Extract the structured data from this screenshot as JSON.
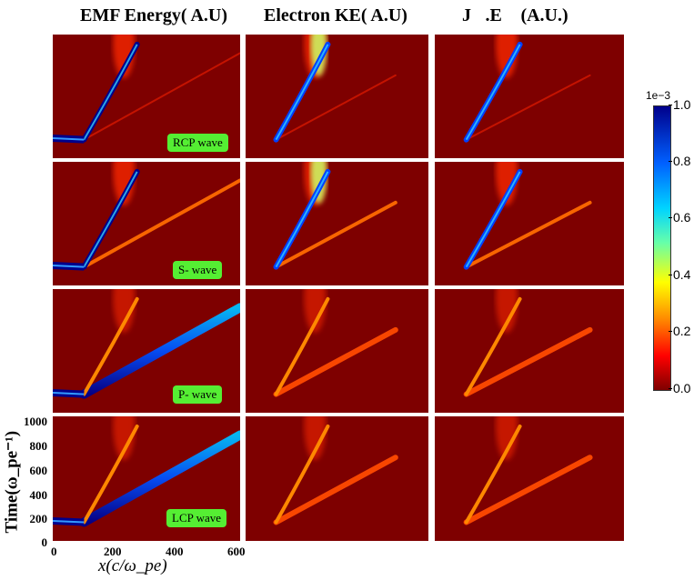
{
  "columns": [
    "EMF Energy( A.U)",
    "Electron KE( A.U)",
    "J⃗.E⃗ (A.U.)"
  ],
  "rows": [
    "RCP wave",
    "S- wave",
    "P- wave",
    "LCP wave"
  ],
  "colorbar": {
    "scale_label": "1e−3",
    "ticks": [
      "1.0",
      "0.8",
      "0.6",
      "0.4",
      "0.2",
      "0.0"
    ],
    "colors": [
      "#7e0000",
      "#ff0000",
      "#ff8a00",
      "#ffff00",
      "#66ffaa",
      "#00d4ff",
      "#0060ff",
      "#00008b"
    ]
  },
  "chart_data": {
    "type": "heatmap",
    "grid": "4 rows × 3 columns of space-time maps",
    "xlabel": "x(c/ω_pe)",
    "ylabel": "Time(ω_pe⁻¹)",
    "xlim": [
      0,
      600
    ],
    "ylim": [
      0,
      1000
    ],
    "x_ticks": [
      "0",
      "200",
      "400",
      "600"
    ],
    "y_ticks": [
      "0",
      "200",
      "400",
      "600",
      "800",
      "1000"
    ],
    "colorbar_range": [
      0.0,
      1.0
    ],
    "colorbar_scale": "1e-3"
  }
}
